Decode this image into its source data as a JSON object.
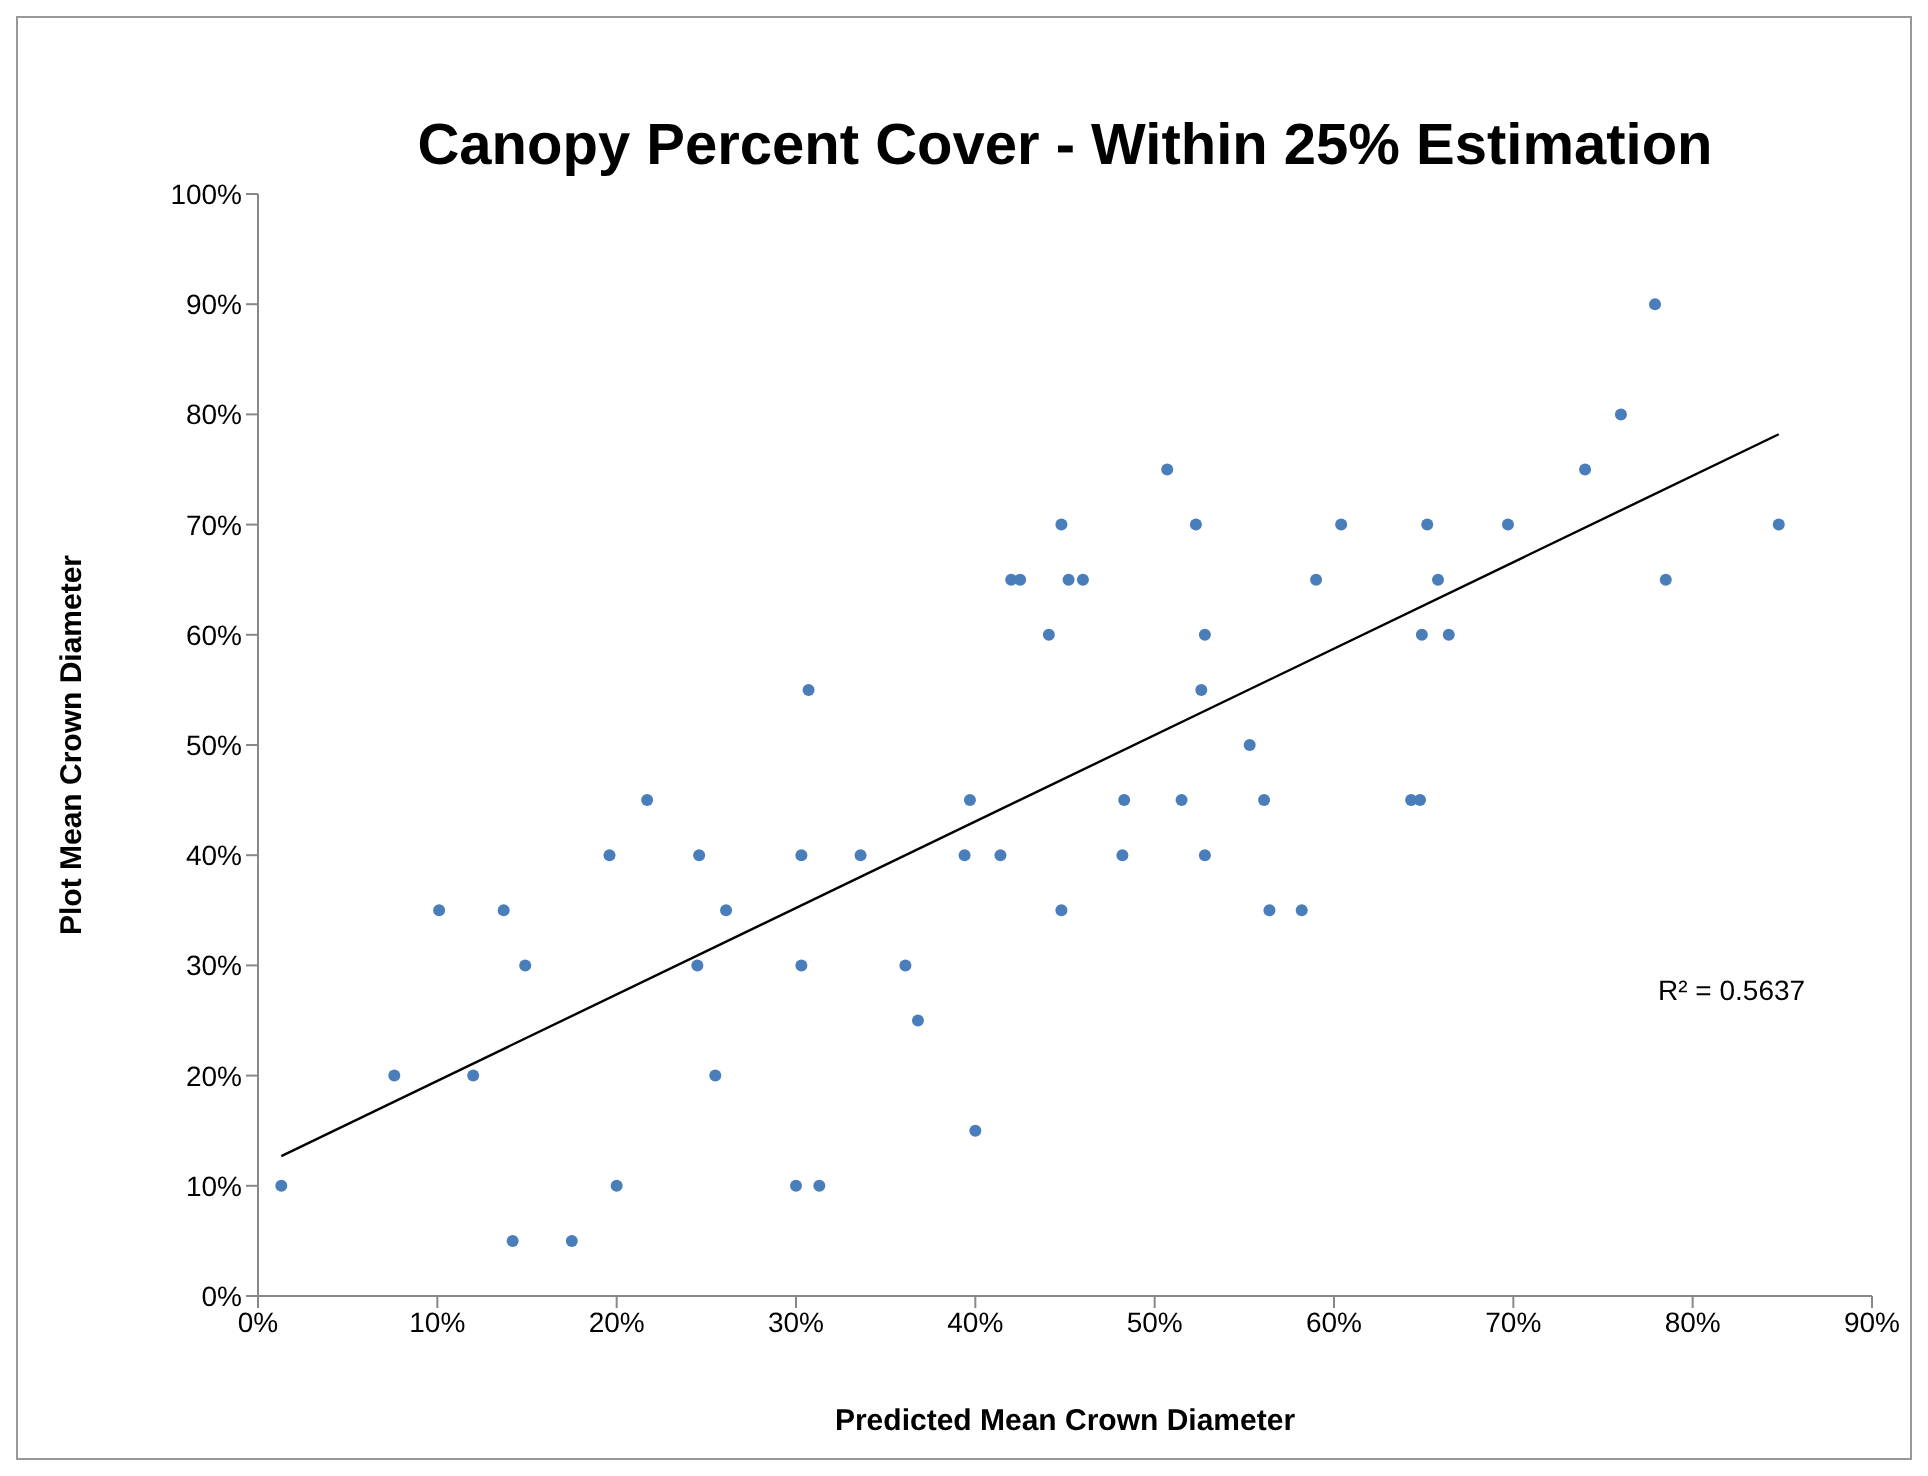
{
  "chart_data": {
    "type": "scatter",
    "title": "Canopy Percent Cover - Within 25% Estimation",
    "xlabel": "Predicted Mean Crown Diameter",
    "ylabel": "Plot Mean Crown Diameter",
    "annotations": [
      "R² = 0.5637"
    ],
    "xlim": [
      0,
      90
    ],
    "xticks": [
      {
        "value": 0,
        "label": "0%"
      },
      {
        "value": 10,
        "label": "10%"
      },
      {
        "value": 20,
        "label": "20%"
      },
      {
        "value": 30,
        "label": "30%"
      },
      {
        "value": 40,
        "label": "40%"
      },
      {
        "value": 50,
        "label": "50%"
      },
      {
        "value": 60,
        "label": "60%"
      },
      {
        "value": 70,
        "label": "70%"
      },
      {
        "value": 80,
        "label": "80%"
      },
      {
        "value": 90,
        "label": "90%"
      }
    ],
    "ylim": [
      0,
      100
    ],
    "yticks": [
      {
        "value": 0,
        "label": "0%"
      },
      {
        "value": 10,
        "label": "10%"
      },
      {
        "value": 20,
        "label": "20%"
      },
      {
        "value": 30,
        "label": "30%"
      },
      {
        "value": 40,
        "label": "40%"
      },
      {
        "value": 50,
        "label": "50%"
      },
      {
        "value": 60,
        "label": "60%"
      },
      {
        "value": 70,
        "label": "70%"
      },
      {
        "value": 80,
        "label": "80%"
      },
      {
        "value": 90,
        "label": "90%"
      },
      {
        "value": 100,
        "label": "100%"
      }
    ],
    "grid": false,
    "legend": false,
    "marker": "circle",
    "series": [
      {
        "color": "#4a7ebb",
        "x": [
          1.3,
          7.6,
          10.1,
          12.0,
          13.7,
          14.2,
          14.9,
          17.5,
          19.6,
          20.0,
          21.7,
          24.6,
          24.5,
          25.5,
          26.1,
          30.0,
          30.3,
          30.3,
          30.7,
          31.3,
          33.6,
          36.1,
          36.8,
          39.4,
          39.7,
          40.0,
          41.4,
          42.0,
          42.5,
          44.1,
          44.8,
          44.8,
          45.2,
          46.0,
          48.2,
          48.3,
          50.7,
          51.5,
          52.3,
          52.6,
          52.8,
          52.8,
          55.3,
          56.1,
          56.4,
          58.2,
          59.0,
          60.4,
          64.3,
          64.8,
          64.9,
          65.2,
          65.8,
          66.4,
          69.7,
          74.0,
          76.0,
          77.9,
          78.5,
          84.8
        ],
        "values": [
          10,
          20,
          35,
          20,
          35,
          5,
          30,
          5,
          40,
          10,
          45,
          40,
          30,
          20,
          35,
          10,
          40,
          30,
          55,
          10,
          40,
          30,
          25,
          40,
          45,
          15,
          40,
          65,
          65,
          60,
          70,
          35,
          65,
          65,
          40,
          45,
          75,
          45,
          70,
          55,
          60,
          40,
          50,
          45,
          35,
          35,
          65,
          70,
          45,
          45,
          60,
          70,
          65,
          60,
          70,
          75,
          80,
          90,
          65,
          70
        ]
      },
      {
        "type": "line",
        "color": "#000000",
        "marker": "none",
        "x": [
          1.3,
          84.8
        ],
        "values": [
          12.7,
          78.2
        ]
      }
    ]
  }
}
